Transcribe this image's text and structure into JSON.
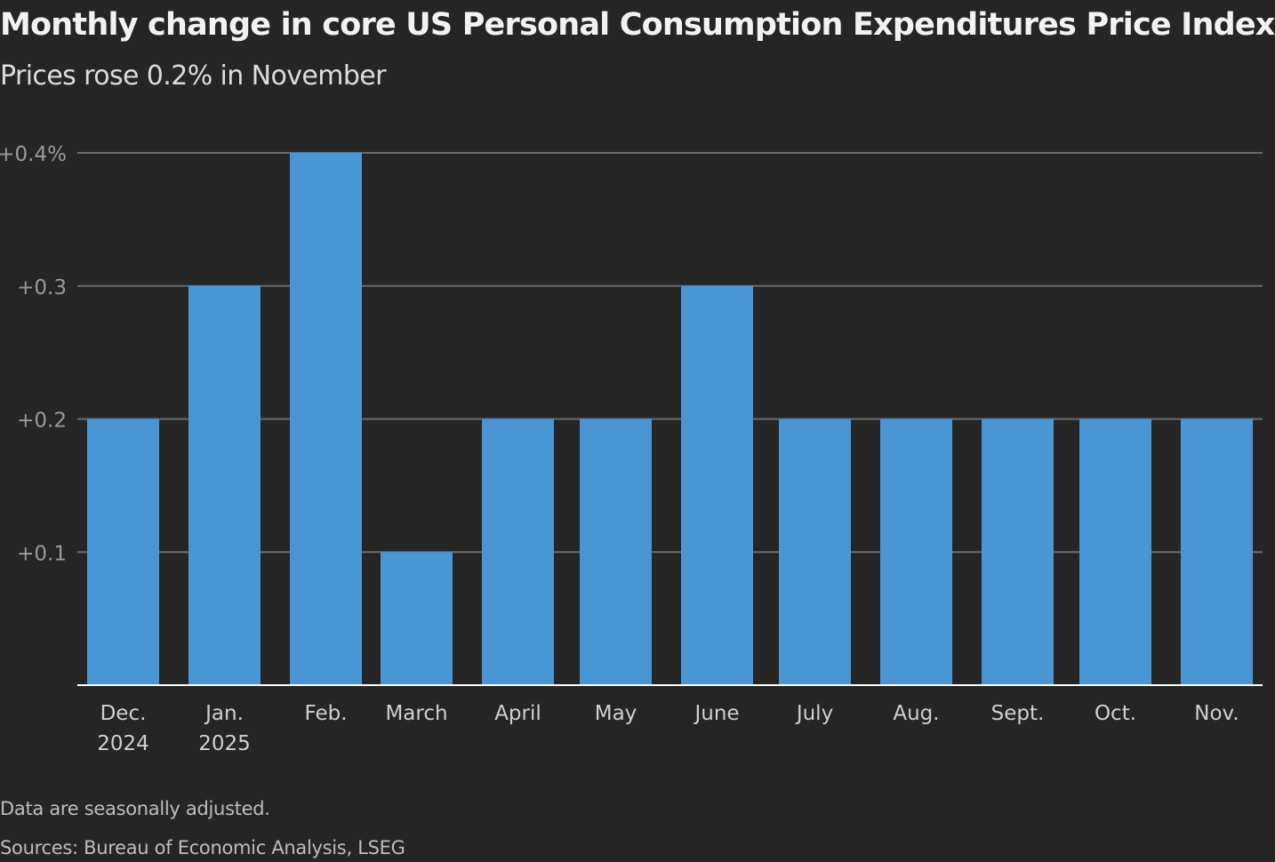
{
  "chart_data": {
    "type": "bar",
    "title": "Monthly change in core US Personal Consumption Expenditures Price Index",
    "subtitle": "Prices rose 0.2% in November",
    "categories": [
      [
        "Dec.",
        "2024"
      ],
      [
        "Jan.",
        "2025"
      ],
      [
        "Feb."
      ],
      [
        "March"
      ],
      [
        "April"
      ],
      [
        "May"
      ],
      [
        "June"
      ],
      [
        "July"
      ],
      [
        "Aug."
      ],
      [
        "Sept."
      ],
      [
        "Oct."
      ],
      [
        "Nov."
      ]
    ],
    "values": [
      0.2,
      0.3,
      0.4,
      0.1,
      0.2,
      0.2,
      0.3,
      0.2,
      0.2,
      0.2,
      0.2,
      0.2
    ],
    "yticks": [
      0.1,
      0.2,
      0.3,
      0.4
    ],
    "ytick_labels": [
      "+0.1",
      "+0.2",
      "+0.3",
      "+0.4%"
    ],
    "ylim": [
      0,
      0.4
    ],
    "xlabel": "",
    "ylabel": "",
    "grid": true,
    "bar_color": "#4a96d4",
    "note": "Data are seasonally adjusted.",
    "source": "Sources: Bureau of Economic Analysis, LSEG"
  }
}
